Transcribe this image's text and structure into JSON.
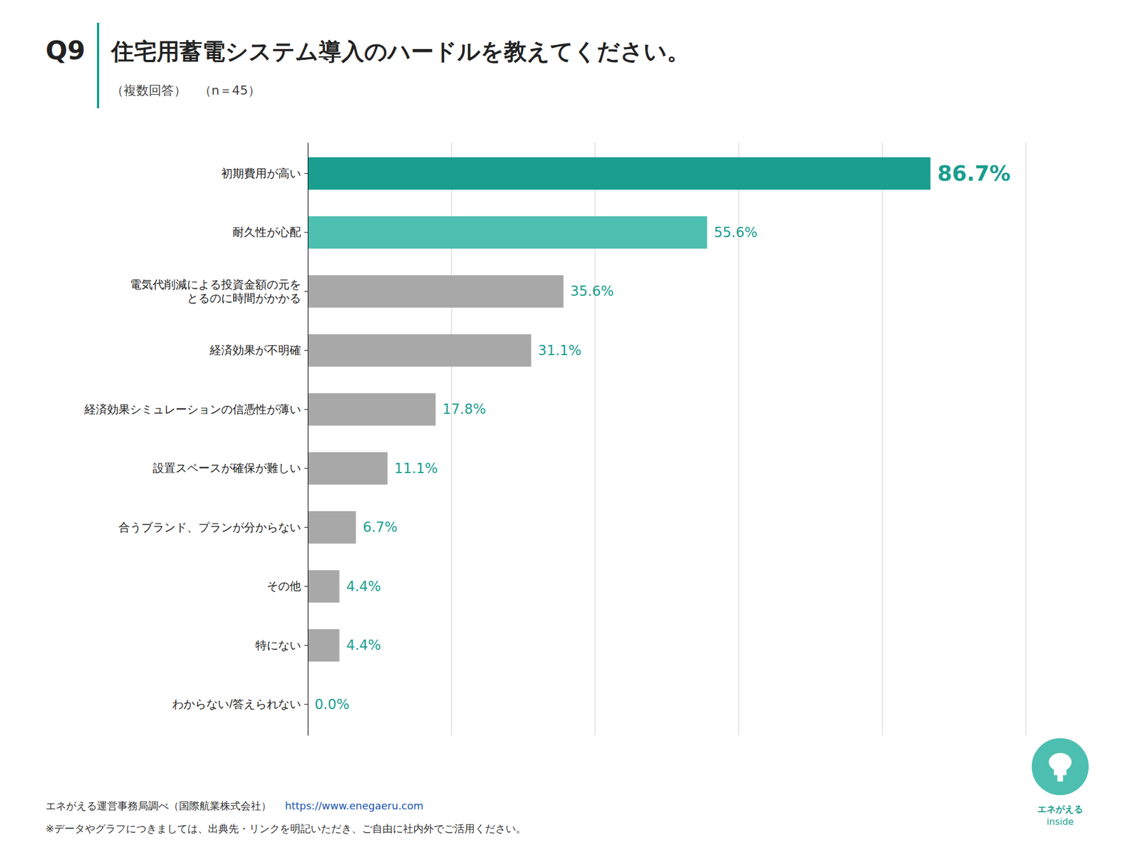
{
  "chart_data": {
    "type": "bar",
    "orientation": "horizontal",
    "title": "住宅用蓄電システム導入のハードルを教えてください。",
    "subtitle": "（複数回答）　（n＝45）",
    "annotations": [
      "Q9",
      "エネがえる運営事務局調べ（国際航業株式会社）",
      "https://www.enegaeru.com",
      "※データやグラフにつきましては、出典先・リンクを明記いただき、ご自由に社内外でご活用ください。",
      "エネがえる",
      "inside"
    ],
    "categories": [
      "初期費用が高い",
      "耐久性が心配",
      "電気代削減による投資金額の元を\nとるのに時間がかかる",
      "経済効果が不明確",
      "経済効果シミュレーションの信憑性が薄い",
      "設置スペースが確保が難しい",
      "合うブランド、プランが分からない",
      "その他",
      "特にない",
      "わからない/答えられない"
    ],
    "values": [
      86.7,
      55.6,
      35.6,
      31.1,
      17.8,
      11.1,
      6.7,
      4.4,
      4.4,
      0.0
    ],
    "value_labels": [
      "86.7%",
      "55.6%",
      "35.6%",
      "31.1%",
      "17.8%",
      "11.1%",
      "6.7%",
      "4.4%",
      "4.4%",
      "0.0%"
    ],
    "data_labels": true,
    "colors": [
      "#1a9e8f",
      "#4dbfb0",
      "#a8a8a8",
      "#a8a8a8",
      "#a8a8a8",
      "#a8a8a8",
      "#a8a8a8",
      "#a8a8a8",
      "#a8a8a8",
      "#a8a8a8"
    ],
    "xlim": [
      0,
      100
    ],
    "xticks": [
      0,
      20,
      40,
      60,
      80,
      100
    ],
    "grid": true,
    "tick_labels": "y"
  }
}
